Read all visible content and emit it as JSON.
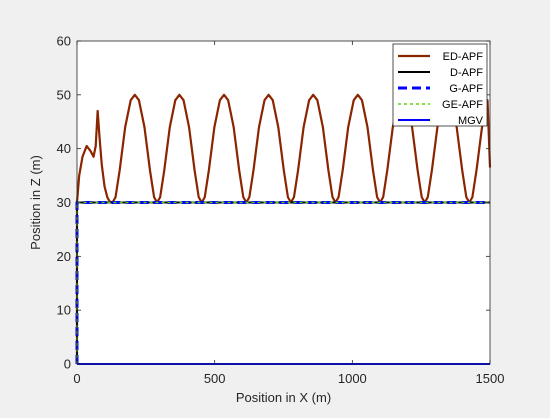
{
  "chart_data": {
    "type": "line",
    "xlabel": "Position in X (m)",
    "ylabel": "Position in Z (m)",
    "xlim": [
      0,
      1500
    ],
    "ylim": [
      0,
      60
    ],
    "xticks": [
      0,
      500,
      1000,
      1500
    ],
    "yticks": [
      0,
      10,
      20,
      30,
      40,
      50,
      60
    ],
    "grid": false,
    "legend_position": "top-right",
    "series": [
      {
        "name": "ED-APF",
        "color": "#8b2500",
        "style": "solid",
        "points": [
          [
            0,
            0
          ],
          [
            0,
            30
          ],
          [
            8,
            35
          ],
          [
            20,
            38.5
          ],
          [
            35,
            40.5
          ],
          [
            50,
            39.5
          ],
          [
            60,
            38.5
          ],
          [
            68,
            40.5
          ],
          [
            75,
            47
          ],
          [
            82,
            42
          ],
          [
            90,
            37
          ],
          [
            100,
            33
          ],
          [
            110,
            31
          ],
          [
            118,
            30.2
          ],
          [
            129,
            30
          ],
          [
            140,
            31
          ],
          [
            155,
            36
          ],
          [
            175,
            44
          ],
          [
            195,
            49
          ],
          [
            210,
            50
          ],
          [
            225,
            49
          ],
          [
            245,
            44
          ],
          [
            265,
            36
          ],
          [
            280,
            31
          ],
          [
            291,
            30
          ],
          [
            302,
            31
          ],
          [
            317,
            36
          ],
          [
            337,
            44
          ],
          [
            357,
            49
          ],
          [
            372,
            50
          ],
          [
            387,
            49
          ],
          [
            407,
            44
          ],
          [
            427,
            36
          ],
          [
            442,
            31
          ],
          [
            453,
            30
          ],
          [
            464,
            31
          ],
          [
            479,
            36
          ],
          [
            499,
            44
          ],
          [
            519,
            49
          ],
          [
            534,
            50
          ],
          [
            549,
            49
          ],
          [
            569,
            44
          ],
          [
            589,
            36
          ],
          [
            604,
            31
          ],
          [
            615,
            30
          ],
          [
            626,
            31
          ],
          [
            641,
            36
          ],
          [
            661,
            44
          ],
          [
            681,
            49
          ],
          [
            696,
            50
          ],
          [
            711,
            49
          ],
          [
            731,
            44
          ],
          [
            751,
            36
          ],
          [
            766,
            31
          ],
          [
            777,
            30
          ],
          [
            788,
            31
          ],
          [
            803,
            36
          ],
          [
            823,
            44
          ],
          [
            843,
            49
          ],
          [
            858,
            50
          ],
          [
            873,
            49
          ],
          [
            893,
            44
          ],
          [
            913,
            36
          ],
          [
            928,
            31
          ],
          [
            939,
            30
          ],
          [
            950,
            31
          ],
          [
            965,
            36
          ],
          [
            985,
            44
          ],
          [
            1005,
            49
          ],
          [
            1020,
            50
          ],
          [
            1035,
            49
          ],
          [
            1055,
            44
          ],
          [
            1075,
            36
          ],
          [
            1090,
            31
          ],
          [
            1101,
            30
          ],
          [
            1112,
            31
          ],
          [
            1127,
            36
          ],
          [
            1147,
            44
          ],
          [
            1167,
            49
          ],
          [
            1182,
            50
          ],
          [
            1197,
            49
          ],
          [
            1217,
            44
          ],
          [
            1237,
            36
          ],
          [
            1252,
            31
          ],
          [
            1263,
            30
          ],
          [
            1274,
            31
          ],
          [
            1289,
            36
          ],
          [
            1309,
            44
          ],
          [
            1329,
            49
          ],
          [
            1344,
            50
          ],
          [
            1359,
            49
          ],
          [
            1379,
            44
          ],
          [
            1399,
            36
          ],
          [
            1414,
            31
          ],
          [
            1425,
            30
          ],
          [
            1436,
            31
          ],
          [
            1451,
            36
          ],
          [
            1471,
            44
          ],
          [
            1491,
            49
          ],
          [
            1500,
            36.5
          ]
        ]
      },
      {
        "name": "D-APF",
        "color": "#000000",
        "style": "solid",
        "points": [
          [
            0,
            0
          ],
          [
            0,
            30
          ],
          [
            1500,
            30
          ]
        ]
      },
      {
        "name": "G-APF",
        "color": "#0000ff",
        "style": "dashed",
        "points": [
          [
            0,
            0
          ],
          [
            0,
            30
          ],
          [
            1500,
            30
          ]
        ]
      },
      {
        "name": "GE-APF",
        "color": "#5fd400",
        "style": "dotted",
        "points": [
          [
            0,
            0
          ],
          [
            0,
            30
          ],
          [
            1500,
            30
          ]
        ]
      },
      {
        "name": "MGV",
        "color": "#0000ff",
        "style": "solid",
        "points": [
          [
            0,
            0
          ],
          [
            1500,
            0
          ]
        ]
      }
    ]
  }
}
